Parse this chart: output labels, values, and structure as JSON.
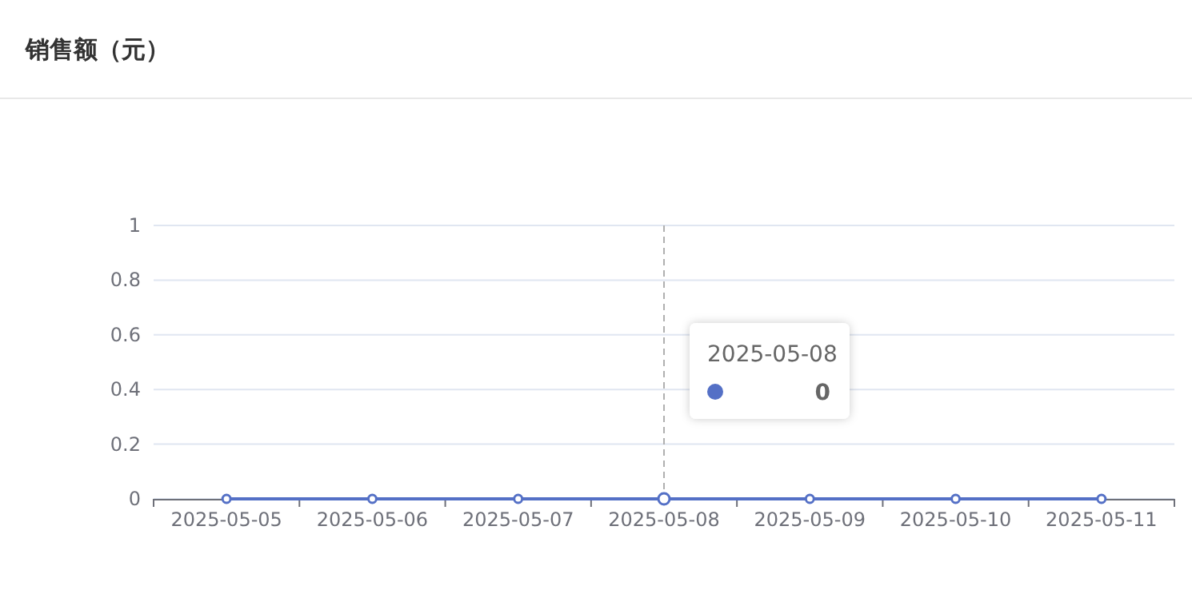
{
  "chart_data": {
    "type": "line",
    "title": "销售额（元）",
    "categories": [
      "2025-05-05",
      "2025-05-06",
      "2025-05-07",
      "2025-05-08",
      "2025-05-09",
      "2025-05-10",
      "2025-05-11"
    ],
    "series": [
      {
        "color": "#5470c6",
        "values": [
          0,
          0,
          0,
          0,
          0,
          0,
          0
        ]
      }
    ],
    "ylim": [
      0,
      1
    ],
    "yticks": [
      0,
      0.2,
      0.4,
      0.6,
      0.8,
      1
    ],
    "grid": "y",
    "marker": "circle",
    "line_style": "solid",
    "ref_lines": [
      {
        "axis": "x",
        "value": "2025-05-08",
        "color": "#b0b0b0",
        "line_style": "dashed"
      }
    ],
    "annotations": [
      "2025-05-08",
      "0"
    ]
  }
}
